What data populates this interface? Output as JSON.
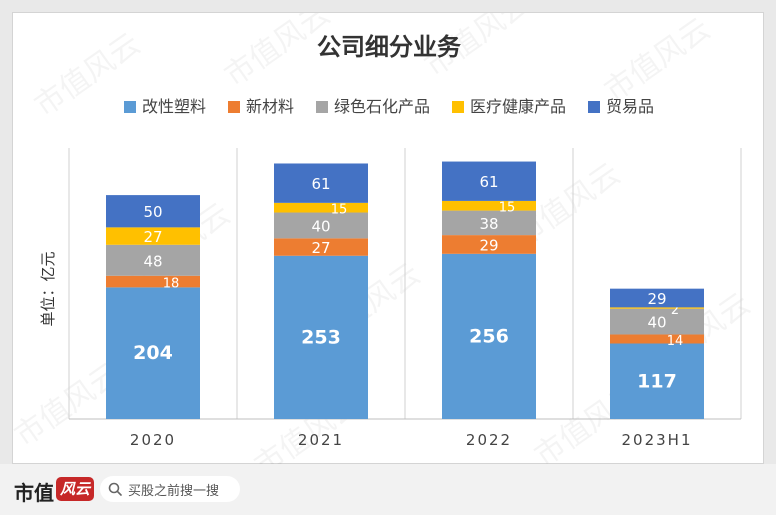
{
  "chart_data": {
    "type": "bar",
    "stacked": true,
    "title": "公司细分业务",
    "ylabel": "单位：亿元",
    "xlabel": "",
    "categories": [
      "2020",
      "2021",
      "2022",
      "2023H1"
    ],
    "series": [
      {
        "name": "改性塑料",
        "color": "#5b9bd5",
        "values": [
          204,
          253,
          256,
          117
        ]
      },
      {
        "name": "新材料",
        "color": "#ed7d31",
        "values": [
          18,
          27,
          29,
          14
        ]
      },
      {
        "name": "绿色石化产品",
        "color": "#a5a5a5",
        "values": [
          48,
          40,
          38,
          40
        ]
      },
      {
        "name": "医疗健康产品",
        "color": "#ffc000",
        "values": [
          27,
          15,
          15,
          2
        ]
      },
      {
        "name": "贸易品",
        "color": "#4472c4",
        "values": [
          50,
          61,
          61,
          29
        ]
      }
    ],
    "legend_position": "top",
    "grid": false
  },
  "watermark": "市值风云",
  "footer": {
    "brand": "市值",
    "badge": "风云",
    "search_placeholder": "买股之前搜一搜"
  }
}
